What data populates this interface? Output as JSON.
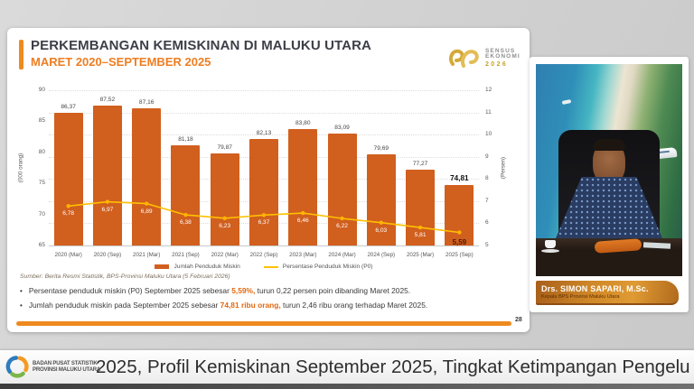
{
  "slide": {
    "title": "PERKEMBANGAN KEMISKINAN DI MALUKU UTARA",
    "subtitle": "MARET 2020–SEPTEMBER 2025",
    "sensus_logo": {
      "line1": "SENSUS",
      "line2": "EKONOMI",
      "line3": "2026"
    },
    "source": "Sumber: Berita Resmi Statistik, BPS-Provinsi Maluku Utara (5 Februari 2026)",
    "bullets": [
      {
        "pre": "Persentase penduduk miskin (P0) September 2025 sebesar ",
        "highlight": "5,59%,",
        "post": " turun 0,22 persen poin dibanding Maret 2025."
      },
      {
        "pre": "Jumlah penduduk miskin pada September 2025 sebesar ",
        "highlight": "74,81 ribu orang,",
        "post": " turun 2,46 ribu orang terhadap Maret 2025."
      }
    ],
    "page_number": "28"
  },
  "chart_data": {
    "type": "bar",
    "categories": [
      "2020 (Mar)",
      "2020 (Sep)",
      "2021 (Mar)",
      "2021 (Sep)",
      "2022 (Mar)",
      "2022 (Sep)",
      "2023 (Mar)",
      "2024 (Mar)",
      "2024 (Sep)",
      "2025 (Mar)",
      "2025 (Sep)"
    ],
    "series": [
      {
        "name": "Jumlah Penduduk Miskin",
        "type": "bar",
        "axis": "left",
        "color": "#d15f1e",
        "values": [
          86.37,
          87.52,
          87.16,
          81.18,
          79.87,
          82.13,
          83.8,
          83.09,
          79.69,
          77.27,
          74.81
        ]
      },
      {
        "name": "Persentase Penduduk Miskin (P0)",
        "type": "line",
        "axis": "right",
        "color": "#ffc000",
        "values": [
          6.78,
          6.97,
          6.89,
          6.38,
          6.23,
          6.37,
          6.46,
          6.22,
          6.03,
          5.81,
          5.59
        ]
      }
    ],
    "left_axis": {
      "label": "(000 orang)",
      "min": 65,
      "max": 90,
      "step": 5
    },
    "right_axis": {
      "label": "(Persen)",
      "min": 5,
      "max": 12,
      "step": 1
    },
    "grid": true,
    "legend_position": "bottom"
  },
  "video": {
    "speaker_name": "Drs. SIMON SAPARI, M.Sc.",
    "speaker_title": "Kepala BPS Provinsi Maluku Utara"
  },
  "footer": {
    "logo_line1": "BADAN PUSAT STATISTIK",
    "logo_line2": "PROVINSI MALUKU UTARA",
    "ticker": "2025, Profil Kemiskinan September 2025, Tingkat Ketimpangan Pengelu"
  }
}
